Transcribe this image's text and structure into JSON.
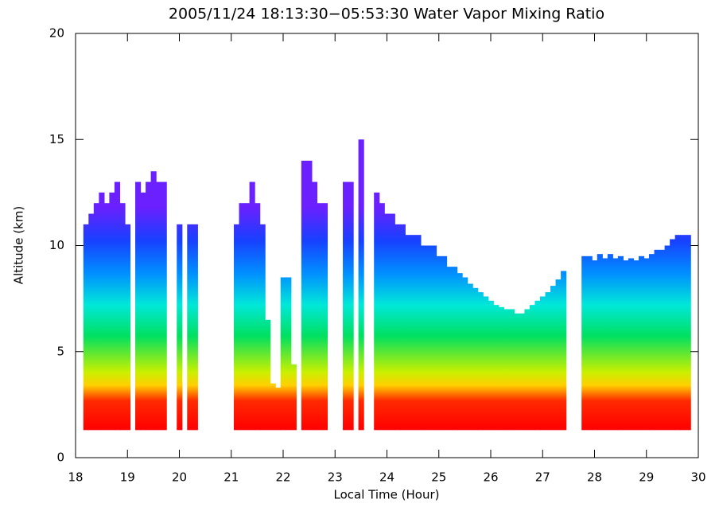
{
  "chart_data": {
    "type": "heatmap",
    "title": "2005/11/24 18:13:30−05:53:30 Water Vapor Mixing Ratio",
    "xlabel": "Local Time (Hour)",
    "ylabel": "Altitude (km)",
    "xlim": [
      18,
      30
    ],
    "xticks": [
      18,
      19,
      20,
      21,
      22,
      23,
      24,
      25,
      26,
      27,
      28,
      29,
      30
    ],
    "ylim": [
      0,
      20
    ],
    "yticks": [
      0,
      5,
      10,
      15,
      20
    ],
    "base": 1.3,
    "x": [
      18.2,
      18.3,
      18.4,
      18.5,
      18.6,
      18.7,
      18.8,
      18.9,
      19.0,
      19.1,
      19.2,
      19.3,
      19.4,
      19.5,
      19.6,
      19.7,
      19.8,
      19.9,
      20.0,
      20.1,
      20.2,
      20.3,
      20.4,
      20.5,
      20.6,
      20.7,
      20.8,
      20.9,
      21.0,
      21.1,
      21.2,
      21.3,
      21.4,
      21.5,
      21.6,
      21.7,
      21.8,
      21.9,
      22.0,
      22.1,
      22.2,
      22.3,
      22.4,
      22.5,
      22.6,
      22.7,
      22.8,
      22.9,
      23.0,
      23.1,
      23.2,
      23.3,
      23.4,
      23.5,
      23.6,
      23.7,
      23.8,
      23.9,
      24.0,
      24.1,
      24.2,
      24.3,
      24.4,
      24.5,
      24.6,
      24.7,
      24.8,
      24.9,
      25.0,
      25.1,
      25.2,
      25.3,
      25.4,
      25.5,
      25.6,
      25.7,
      25.8,
      25.9,
      26.0,
      26.1,
      26.2,
      26.3,
      26.4,
      26.5,
      26.6,
      26.7,
      26.8,
      26.9,
      27.0,
      27.1,
      27.2,
      27.3,
      27.4,
      27.5,
      27.6,
      27.7,
      27.8,
      27.9,
      28.0,
      28.1,
      28.2,
      28.3,
      28.4,
      28.5,
      28.6,
      28.7,
      28.8,
      28.9,
      29.0,
      29.1,
      29.2,
      29.3,
      29.4,
      29.5,
      29.6,
      29.7,
      29.8
    ],
    "values": [
      11,
      11.5,
      12,
      12.5,
      12,
      12.5,
      13,
      12,
      11,
      null,
      13,
      12.5,
      13,
      13.5,
      13,
      13,
      null,
      null,
      11,
      null,
      11,
      11,
      null,
      null,
      null,
      null,
      null,
      null,
      null,
      11,
      12,
      12,
      13,
      12,
      11,
      6.5,
      3.5,
      3.3,
      8.5,
      8.5,
      4.4,
      null,
      14,
      14,
      13,
      12,
      12,
      null,
      null,
      null,
      13,
      13,
      null,
      15,
      null,
      null,
      12.5,
      12,
      11.5,
      11.5,
      11,
      11,
      10.5,
      10.5,
      10.5,
      10,
      10,
      10,
      9.5,
      9.5,
      9,
      9,
      8.7,
      8.5,
      8.2,
      8,
      7.8,
      7.6,
      7.4,
      7.2,
      7.1,
      7,
      7,
      6.8,
      6.8,
      7,
      7.2,
      7.4,
      7.6,
      7.8,
      8.1,
      8.4,
      8.8,
      null,
      null,
      null,
      9.5,
      9.5,
      9.3,
      9.6,
      9.4,
      9.6,
      9.4,
      9.5,
      9.3,
      9.4,
      9.3,
      9.5,
      9.4,
      9.6,
      9.8,
      9.8,
      10,
      10.3,
      10.5,
      10.5,
      10.5
    ]
  }
}
